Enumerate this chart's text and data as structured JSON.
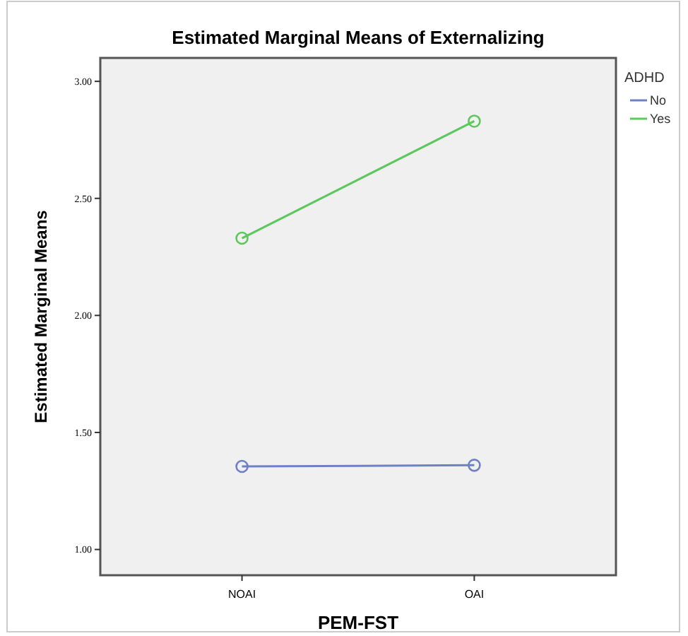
{
  "chart_data": {
    "type": "line",
    "title": "Estimated Marginal Means of Externalizing",
    "xlabel": "PEM-FST",
    "ylabel": "Estimated Marginal Means",
    "legend_title": "ADHD",
    "categories": [
      "NOAI",
      "OAI"
    ],
    "series": [
      {
        "name": "No",
        "color": "#6f80c4",
        "values": [
          1.355,
          1.36
        ]
      },
      {
        "name": "Yes",
        "color": "#5cc85c",
        "values": [
          2.33,
          2.83
        ]
      }
    ],
    "ylim": [
      0.89,
      3.1
    ],
    "yticks": [
      {
        "value": 1,
        "label": "1.00"
      },
      {
        "value": 1.5,
        "label": "1.50"
      },
      {
        "value": 2,
        "label": "2.00"
      },
      {
        "value": 2.5,
        "label": "2.50"
      },
      {
        "value": 3,
        "label": "3.00"
      }
    ],
    "marker": "circle",
    "legend": "top right",
    "grid": false
  }
}
